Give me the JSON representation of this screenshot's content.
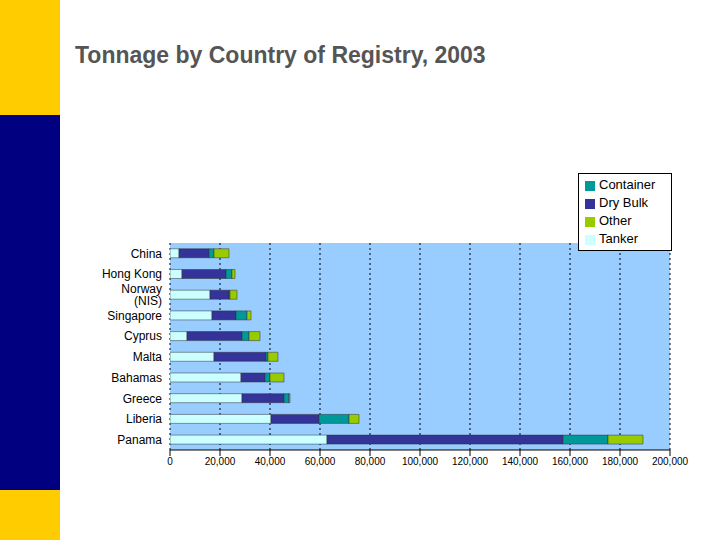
{
  "chart_data": {
    "type": "bar",
    "title": "Tonnage by Country of Registry, 2003",
    "orientation": "horizontal",
    "stacked": true,
    "grid": true,
    "legend": "top-right",
    "categories": [
      "China",
      "Hong Kong",
      "Norway (NIS)",
      "Singapore",
      "Cyprus",
      "Malta",
      "Bahamas",
      "Greece",
      "Liberia",
      "Panama"
    ],
    "series": [
      {
        "name": "Tanker",
        "color": "#ccffff",
        "values": [
          3600,
          4800,
          16000,
          16800,
          6800,
          17600,
          28400,
          28800,
          40400,
          62800
        ]
      },
      {
        "name": "Dry Bulk",
        "color": "#333399",
        "values": [
          12000,
          17600,
          7600,
          9600,
          22000,
          20800,
          9600,
          16800,
          19200,
          94400
        ]
      },
      {
        "name": "Container",
        "color": "#009999",
        "values": [
          2000,
          2400,
          400,
          4400,
          2800,
          800,
          2000,
          2000,
          12000,
          18000
        ]
      },
      {
        "name": "Other",
        "color": "#99cc00",
        "values": [
          6000,
          1200,
          2800,
          1600,
          4400,
          4000,
          5600,
          400,
          4000,
          14000
        ]
      }
    ],
    "xlim": [
      0,
      200000
    ],
    "xticks": [
      0,
      {
        "value": 20000,
        "label": "20,000"
      },
      {
        "value": 40000,
        "label": "40,000"
      },
      {
        "value": 60000,
        "label": "60,000"
      },
      {
        "value": 80000,
        "label": "80,000"
      },
      {
        "value": 100000,
        "label": "100,000"
      },
      {
        "value": 120000,
        "label": "120,000"
      },
      {
        "value": 140000,
        "label": "140,000"
      },
      {
        "value": 160000,
        "label": "160,000"
      },
      {
        "value": 180000,
        "label": "180,000"
      },
      {
        "value": 200000,
        "label": "200,000"
      }
    ]
  }
}
